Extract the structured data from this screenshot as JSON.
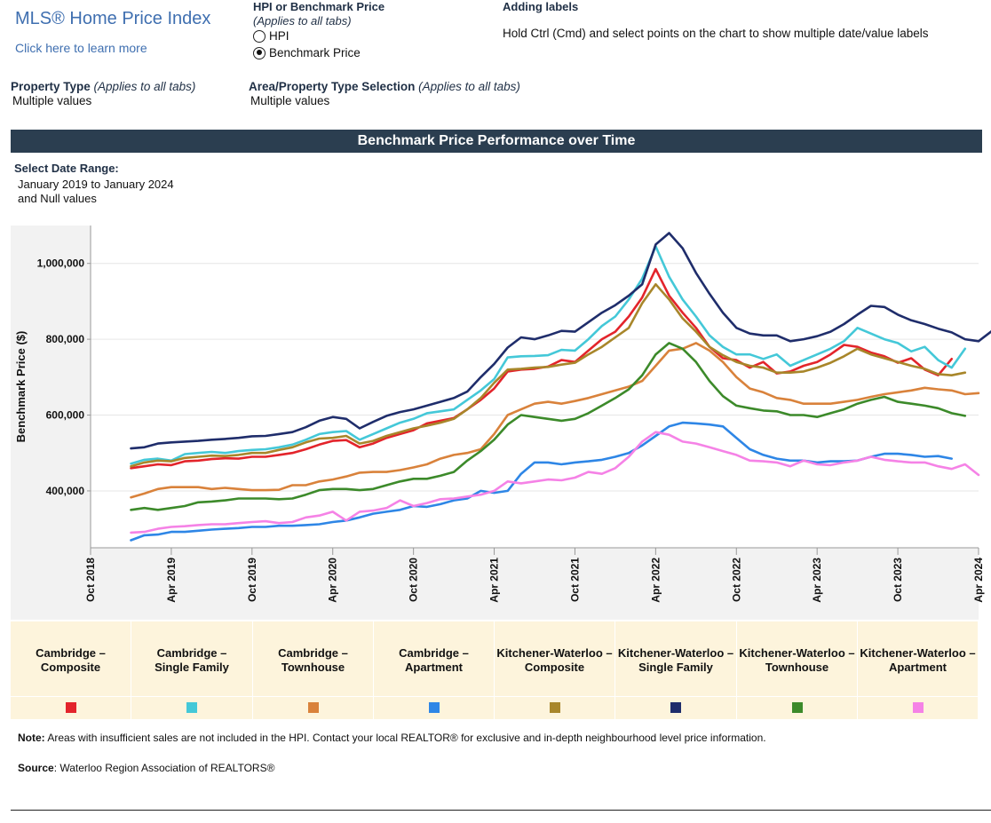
{
  "header": {
    "brand_title": "MLS® Home Price Index",
    "learn_more": "Click here to learn more",
    "hpi_toggle_title": "HPI or Benchmark Price",
    "hpi_toggle_note": "(Applies to all tabs)",
    "option_hpi": "HPI",
    "option_benchmark": "Benchmark Price",
    "selected_option": "Benchmark Price",
    "adding_labels_title": "Adding labels",
    "adding_labels_text": "Hold Ctrl (Cmd) and select points on the chart to show multiple date/value labels"
  },
  "filters": {
    "property_type_label": "Property Type",
    "property_type_note": "(Applies to all tabs)",
    "property_type_value": "Multiple values",
    "area_label": "Area/Property Type Selection",
    "area_note": "(Applies to all tabs)",
    "area_value": "Multiple values"
  },
  "banner_title": "Benchmark Price Performance over Time",
  "date_range": {
    "label": "Select Date Range:",
    "value_line1": "January 2019 to January 2024",
    "value_line2": "and Null values"
  },
  "colors": {
    "banner_bg": "#2b3e50",
    "legend_bg": "#fdf4dc",
    "plot_bg": "#f2f2f2"
  },
  "chart_data": {
    "type": "line",
    "title": "Benchmark Price Performance over Time",
    "xlabel": "",
    "ylabel": "Benchmark Price ($)",
    "ylim": [
      250000,
      1100000
    ],
    "grid": true,
    "x_start": "Jan 2019",
    "x_end": "Jan 2024",
    "x_range_months": [
      -3,
      63
    ],
    "yticks": [
      {
        "value": 400000,
        "label": "400,000"
      },
      {
        "value": 600000,
        "label": "600,000"
      },
      {
        "value": 800000,
        "label": "800,000"
      },
      {
        "value": 1000000,
        "label": "1,000,000"
      }
    ],
    "xticks": [
      {
        "month": -3,
        "label": "Oct 2018"
      },
      {
        "month": 3,
        "label": "Apr 2019"
      },
      {
        "month": 9,
        "label": "Oct 2019"
      },
      {
        "month": 15,
        "label": "Apr 2020"
      },
      {
        "month": 21,
        "label": "Oct 2020"
      },
      {
        "month": 27,
        "label": "Apr 2021"
      },
      {
        "month": 33,
        "label": "Oct 2021"
      },
      {
        "month": 39,
        "label": "Apr 2022"
      },
      {
        "month": 45,
        "label": "Oct 2022"
      },
      {
        "month": 51,
        "label": "Apr 2023"
      },
      {
        "month": 57,
        "label": "Oct 2023"
      },
      {
        "month": 63,
        "label": "Apr 2024"
      }
    ],
    "series": [
      {
        "name": "Cambridge – Composite",
        "color": "#e3242b",
        "values": [
          460000,
          465000,
          470000,
          468000,
          478000,
          480000,
          484000,
          486000,
          485000,
          490000,
          490000,
          495000,
          500000,
          510000,
          522000,
          532000,
          534000,
          515000,
          525000,
          540000,
          550000,
          560000,
          578000,
          585000,
          592000,
          615000,
          640000,
          670000,
          715000,
          720000,
          722000,
          728000,
          745000,
          740000,
          770000,
          800000,
          820000,
          860000,
          910000,
          985000,
          915000,
          870000,
          830000,
          780000,
          750000,
          745000,
          725000,
          740000,
          710000,
          715000,
          730000,
          740000,
          760000,
          785000,
          780000,
          765000,
          755000,
          738000,
          750000,
          720000,
          705000,
          748000
        ]
      },
      {
        "name": "Cambridge – Single Family",
        "color": "#44c8d8",
        "values": [
          472000,
          482000,
          485000,
          480000,
          497000,
          500000,
          503000,
          500000,
          505000,
          508000,
          510000,
          515000,
          522000,
          535000,
          550000,
          555000,
          558000,
          535000,
          550000,
          565000,
          580000,
          590000,
          605000,
          610000,
          615000,
          640000,
          665000,
          695000,
          752000,
          755000,
          756000,
          758000,
          772000,
          770000,
          800000,
          835000,
          860000,
          905000,
          960000,
          1045000,
          965000,
          905000,
          860000,
          810000,
          780000,
          760000,
          760000,
          748000,
          760000,
          730000,
          745000,
          760000,
          775000,
          795000,
          830000,
          815000,
          800000,
          790000,
          768000,
          780000,
          745000,
          725000,
          775000
        ]
      },
      {
        "name": "Cambridge – Townhouse",
        "color": "#d9823b",
        "values": [
          383000,
          393000,
          405000,
          410000,
          410000,
          410000,
          405000,
          408000,
          405000,
          402000,
          402000,
          403000,
          415000,
          415000,
          425000,
          430000,
          438000,
          448000,
          450000,
          450000,
          455000,
          462000,
          470000,
          485000,
          495000,
          500000,
          510000,
          550000,
          600000,
          615000,
          630000,
          635000,
          630000,
          637000,
          645000,
          655000,
          665000,
          675000,
          690000,
          730000,
          770000,
          775000,
          790000,
          770000,
          740000,
          700000,
          670000,
          660000,
          645000,
          640000,
          630000,
          630000,
          630000,
          635000,
          640000,
          648000,
          655000,
          660000,
          665000,
          672000,
          668000,
          665000,
          655000,
          658000
        ]
      },
      {
        "name": "Cambridge – Apartment",
        "color": "#2e86e6",
        "values": [
          270000,
          283000,
          285000,
          292000,
          292000,
          295000,
          298000,
          300000,
          302000,
          305000,
          305000,
          308000,
          308000,
          310000,
          312000,
          318000,
          322000,
          330000,
          340000,
          345000,
          350000,
          360000,
          358000,
          365000,
          375000,
          380000,
          400000,
          395000,
          400000,
          445000,
          475000,
          475000,
          470000,
          475000,
          478000,
          482000,
          490000,
          500000,
          520000,
          545000,
          570000,
          580000,
          578000,
          575000,
          570000,
          540000,
          510000,
          495000,
          485000,
          480000,
          480000,
          475000,
          478000,
          478000,
          480000,
          490000,
          498000,
          498000,
          495000,
          490000,
          492000,
          485000
        ]
      },
      {
        "name": "Kitchener-Waterloo – Composite",
        "color": "#a8862a",
        "values": [
          465000,
          475000,
          480000,
          478000,
          487000,
          490000,
          493000,
          492000,
          495000,
          500000,
          500000,
          508000,
          515000,
          528000,
          538000,
          540000,
          545000,
          525000,
          532000,
          545000,
          555000,
          565000,
          572000,
          580000,
          590000,
          615000,
          645000,
          685000,
          720000,
          722000,
          725000,
          727000,
          733000,
          738000,
          760000,
          780000,
          805000,
          830000,
          895000,
          945000,
          905000,
          855000,
          820000,
          780000,
          758000,
          740000,
          730000,
          725000,
          712000,
          712000,
          715000,
          725000,
          738000,
          755000,
          775000,
          760000,
          750000,
          740000,
          730000,
          722000,
          708000,
          705000,
          712000
        ]
      },
      {
        "name": "Kitchener-Waterloo – Single Family",
        "color": "#1f2d6b",
        "values": [
          512000,
          515000,
          525000,
          528000,
          530000,
          532000,
          535000,
          537000,
          540000,
          544000,
          545000,
          550000,
          555000,
          568000,
          585000,
          595000,
          590000,
          565000,
          582000,
          598000,
          608000,
          615000,
          625000,
          635000,
          645000,
          662000,
          700000,
          735000,
          778000,
          805000,
          800000,
          810000,
          822000,
          820000,
          845000,
          870000,
          890000,
          915000,
          945000,
          1050000,
          1080000,
          1040000,
          975000,
          920000,
          870000,
          830000,
          815000,
          810000,
          810000,
          795000,
          800000,
          808000,
          820000,
          840000,
          865000,
          888000,
          885000,
          865000,
          850000,
          840000,
          828000,
          818000,
          800000,
          795000,
          822000
        ]
      },
      {
        "name": "Kitchener-Waterloo – Townhouse",
        "color": "#3c8a2a",
        "values": [
          350000,
          355000,
          350000,
          355000,
          360000,
          370000,
          372000,
          375000,
          380000,
          380000,
          380000,
          378000,
          380000,
          390000,
          402000,
          405000,
          405000,
          402000,
          405000,
          415000,
          425000,
          432000,
          432000,
          440000,
          450000,
          480000,
          505000,
          535000,
          575000,
          600000,
          595000,
          590000,
          585000,
          590000,
          605000,
          625000,
          645000,
          668000,
          705000,
          760000,
          790000,
          775000,
          740000,
          690000,
          650000,
          625000,
          618000,
          612000,
          610000,
          600000,
          600000,
          595000,
          605000,
          615000,
          630000,
          640000,
          648000,
          635000,
          630000,
          625000,
          618000,
          605000,
          598000
        ]
      },
      {
        "name": "Kitchener-Waterloo – Apartment",
        "color": "#f582e6",
        "values": [
          290000,
          292000,
          300000,
          305000,
          307000,
          310000,
          312000,
          312000,
          315000,
          318000,
          320000,
          315000,
          318000,
          330000,
          335000,
          345000,
          322000,
          345000,
          348000,
          355000,
          375000,
          360000,
          368000,
          378000,
          380000,
          385000,
          390000,
          400000,
          425000,
          420000,
          425000,
          430000,
          428000,
          435000,
          450000,
          445000,
          460000,
          490000,
          530000,
          555000,
          548000,
          530000,
          525000,
          515000,
          505000,
          495000,
          480000,
          478000,
          475000,
          465000,
          480000,
          470000,
          468000,
          475000,
          480000,
          490000,
          482000,
          478000,
          475000,
          475000,
          465000,
          458000,
          470000,
          442000
        ]
      }
    ]
  },
  "note_label": "Note:",
  "note_text": " Areas with insufficient sales are not included in the HPI. Contact your local REALTOR® for exclusive and in-depth neighbourhood level price information.",
  "source_label": "Source",
  "source_text": ": Waterloo Region Association of REALTORS®"
}
